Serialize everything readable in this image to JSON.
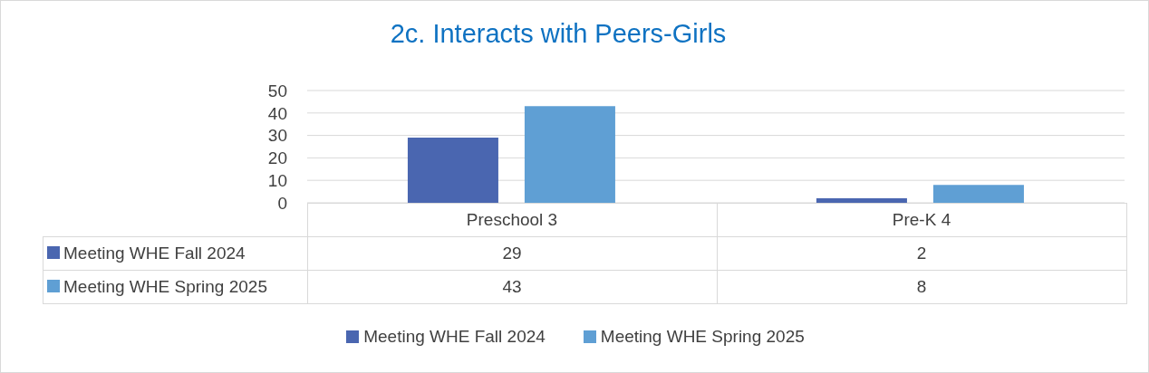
{
  "chart_data": {
    "type": "bar",
    "title": "2c. Interacts with Peers-Girls",
    "categories": [
      "Preschool 3",
      "Pre-K 4"
    ],
    "series": [
      {
        "name": "Meeting WHE Fall 2024",
        "color": "#4a66b0",
        "values": [
          29,
          2
        ]
      },
      {
        "name": "Meeting WHE Spring 2025",
        "color": "#5f9fd4",
        "values": [
          43,
          8
        ]
      }
    ],
    "ylim": [
      0,
      50
    ],
    "yticks": [
      0,
      10,
      20,
      30,
      40,
      50
    ],
    "grid": "y",
    "legend": "bottom",
    "data_labels": true
  }
}
